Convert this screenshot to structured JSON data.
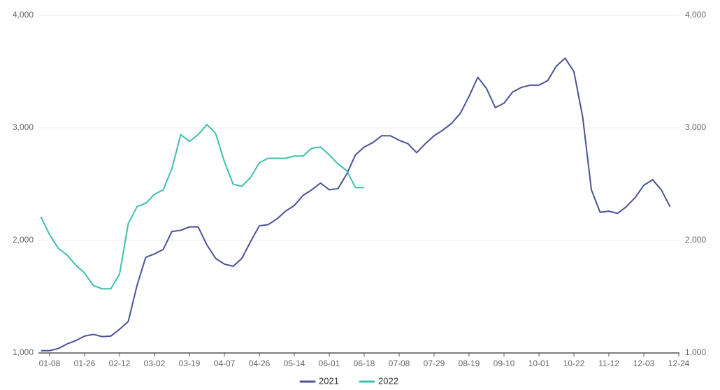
{
  "chart_data": {
    "type": "line",
    "categories": [
      null,
      "01-08",
      null,
      null,
      null,
      "01-26",
      null,
      null,
      null,
      "02-12",
      null,
      null,
      null,
      "03-02",
      null,
      null,
      null,
      "03-19",
      null,
      null,
      null,
      "04-07",
      null,
      null,
      null,
      "04-26",
      null,
      null,
      null,
      "05-14",
      null,
      null,
      null,
      "06-01",
      null,
      null,
      null,
      "06-18",
      null,
      null,
      null,
      "07-08",
      null,
      null,
      null,
      "07-29",
      null,
      null,
      null,
      "08-19",
      null,
      null,
      null,
      "09-10",
      null,
      null,
      null,
      "10-01",
      null,
      null,
      null,
      "10-22",
      null,
      null,
      null,
      "11-12",
      null,
      null,
      null,
      "12-03",
      null,
      null,
      null,
      "12-24"
    ],
    "series": [
      {
        "name": "2021",
        "color": "#4b5296",
        "values": [
          1020,
          1020,
          1040,
          1080,
          1110,
          1150,
          1165,
          1145,
          1150,
          1210,
          1280,
          1600,
          1850,
          1880,
          1920,
          2080,
          2090,
          2120,
          2120,
          1960,
          1840,
          1790,
          1770,
          1840,
          1990,
          2130,
          2140,
          2190,
          2260,
          2310,
          2400,
          2450,
          2510,
          2450,
          2460,
          2590,
          2760,
          2830,
          2870,
          2930,
          2930,
          2890,
          2860,
          2780,
          2860,
          2930,
          2980,
          3040,
          3130,
          3280,
          3450,
          3350,
          3180,
          3220,
          3320,
          3360,
          3380,
          3380,
          3420,
          3550,
          3620,
          3500,
          3100,
          2450,
          2250,
          2260,
          2240,
          2300,
          2380,
          2490,
          2540,
          2450,
          2300,
          null
        ]
      },
      {
        "name": "2022",
        "color": "#3cc0ad",
        "values": [
          2210,
          2050,
          1930,
          1870,
          1780,
          1710,
          1600,
          1570,
          1570,
          1700,
          2150,
          2300,
          2330,
          2410,
          2450,
          2640,
          2940,
          2880,
          2940,
          3030,
          2950,
          2700,
          2500,
          2480,
          2560,
          2690,
          2730,
          2730,
          2730,
          2750,
          2750,
          2820,
          2830,
          2760,
          2680,
          2620,
          2470,
          2470,
          null,
          null,
          null,
          null,
          null,
          null,
          null,
          null,
          null,
          null,
          null,
          null,
          null,
          null,
          null,
          null,
          null,
          null,
          null,
          null,
          null,
          null,
          null,
          null,
          null,
          null,
          null,
          null,
          null,
          null,
          null,
          null,
          null,
          null,
          null,
          null
        ]
      }
    ],
    "ylim": [
      1000,
      4000
    ],
    "yticks": [
      {
        "value": 1000,
        "label": "1,000"
      },
      {
        "value": 2000,
        "label": "2,000"
      },
      {
        "value": 3000,
        "label": "3,000"
      },
      {
        "value": 4000,
        "label": "4,000"
      }
    ],
    "y2lim": [
      1000,
      4000
    ],
    "y2ticks": [
      {
        "value": 1000,
        "label": "1,000"
      },
      {
        "value": 2000,
        "label": "2,000"
      },
      {
        "value": 3000,
        "label": "3,000"
      },
      {
        "value": 4000,
        "label": "4,000"
      }
    ],
    "grid": true,
    "legend": "bottom"
  }
}
